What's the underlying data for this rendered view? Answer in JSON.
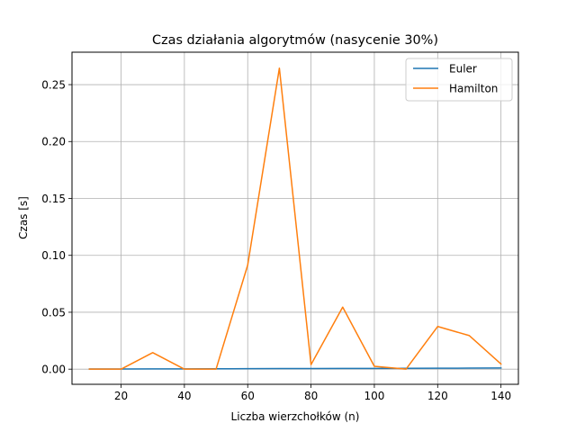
{
  "chart_data": {
    "type": "line",
    "title": "Czas działania algorytmów (nasycenie 30%)",
    "xlabel": "Liczba wierzchołków (n)",
    "ylabel": "Czas [s]",
    "x": [
      10,
      20,
      30,
      40,
      50,
      60,
      70,
      80,
      90,
      100,
      110,
      120,
      130,
      140
    ],
    "xlim": [
      4.5,
      145.5
    ],
    "ylim": [
      -0.0133,
      0.2785
    ],
    "xticks": [
      20,
      40,
      60,
      80,
      100,
      120,
      140
    ],
    "xtick_labels": [
      "20",
      "40",
      "60",
      "80",
      "100",
      "120",
      "140"
    ],
    "yticks": [
      0.0,
      0.05,
      0.1,
      0.15,
      0.2,
      0.25
    ],
    "ytick_labels": [
      "0.00",
      "0.05",
      "0.10",
      "0.15",
      "0.20",
      "0.25"
    ],
    "grid": true,
    "legend_position": "top-right",
    "series": [
      {
        "name": "Euler",
        "color": "#1f77b4",
        "values": [
          0.0001,
          0.0001,
          0.0002,
          0.0002,
          0.0003,
          0.0004,
          0.0005,
          0.0005,
          0.0006,
          0.0006,
          0.0007,
          0.0008,
          0.0009,
          0.001
        ]
      },
      {
        "name": "Hamilton",
        "color": "#ff7f0e",
        "values": [
          0.0,
          0.0,
          0.0145,
          0.0,
          0.0,
          0.0915,
          0.2645,
          0.004,
          0.0545,
          0.0025,
          0.0,
          0.0375,
          0.0295,
          0.0045
        ]
      }
    ]
  }
}
